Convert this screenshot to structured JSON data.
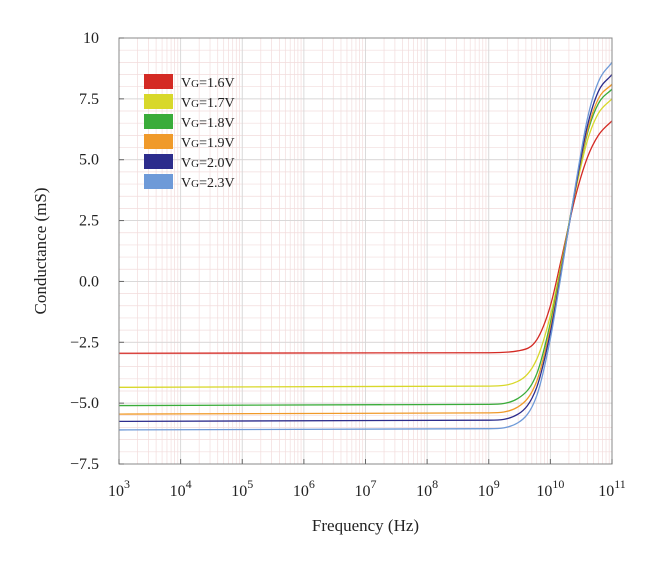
{
  "chart_data": {
    "type": "line",
    "title": "",
    "xlabel": "Frequency (Hz)",
    "ylabel": "Conductance (mS)",
    "x_scale": "log10",
    "xlim": [
      1000,
      100000000000
    ],
    "ylim": [
      -7.5,
      10
    ],
    "x_ticks": [
      {
        "value": 1000,
        "base": "10",
        "exp": "3"
      },
      {
        "value": 10000,
        "base": "10",
        "exp": "4"
      },
      {
        "value": 100000,
        "base": "10",
        "exp": "5"
      },
      {
        "value": 1000000,
        "base": "10",
        "exp": "6"
      },
      {
        "value": 10000000,
        "base": "10",
        "exp": "7"
      },
      {
        "value": 100000000,
        "base": "10",
        "exp": "8"
      },
      {
        "value": 1000000000,
        "base": "10",
        "exp": "9"
      },
      {
        "value": 10000000000,
        "base": "10",
        "exp": "10"
      },
      {
        "value": 100000000000,
        "base": "10",
        "exp": "11"
      }
    ],
    "y_ticks": [
      {
        "value": 10,
        "label": "10"
      },
      {
        "value": 7.5,
        "label": "7.5"
      },
      {
        "value": 5,
        "label": "5.0"
      },
      {
        "value": 2.5,
        "label": "2.5"
      },
      {
        "value": 0,
        "label": "0.0"
      },
      {
        "value": -2.5,
        "label": "−2.5"
      },
      {
        "value": -5,
        "label": "−5.0"
      },
      {
        "value": -7.5,
        "label": "−7.5"
      }
    ],
    "grid": true,
    "legend_position": "top-left",
    "x": [
      1000,
      1000000000,
      3000000000,
      6000000000,
      10000000000,
      15000000000,
      25000000000,
      40000000000,
      60000000000,
      100000000000
    ],
    "series": [
      {
        "name_prefix": "V",
        "name_sub": "G",
        "name_value": "=1.6V",
        "color": "#d42a24",
        "values": [
          -2.95,
          -2.93,
          -2.85,
          -2.4,
          -1.0,
          0.9,
          3.4,
          5.1,
          6.0,
          6.6
        ]
      },
      {
        "name_prefix": "V",
        "name_sub": "G",
        "name_value": "=1.7V",
        "color": "#d8d82a",
        "values": [
          -4.35,
          -4.3,
          -4.1,
          -3.2,
          -1.4,
          0.7,
          3.6,
          5.8,
          6.9,
          7.5
        ]
      },
      {
        "name_prefix": "V",
        "name_sub": "G",
        "name_value": "=1.8V",
        "color": "#3aac3a",
        "values": [
          -5.1,
          -5.05,
          -4.8,
          -3.8,
          -1.7,
          0.6,
          3.7,
          6.1,
          7.3,
          7.9
        ]
      },
      {
        "name_prefix": "V",
        "name_sub": "G",
        "name_value": "=1.9V",
        "color": "#f09a2a",
        "values": [
          -5.45,
          -5.4,
          -5.15,
          -4.1,
          -1.9,
          0.5,
          3.7,
          6.2,
          7.5,
          8.1
        ]
      },
      {
        "name_prefix": "V",
        "name_sub": "G",
        "name_value": "=2.0V",
        "color": "#2c2c8c",
        "values": [
          -5.75,
          -5.7,
          -5.45,
          -4.35,
          -2.1,
          0.4,
          3.7,
          6.4,
          7.8,
          8.5
        ]
      },
      {
        "name_prefix": "V",
        "name_sub": "G",
        "name_value": "=2.3V",
        "color": "#6e9ad8",
        "values": [
          -6.1,
          -6.05,
          -5.8,
          -4.7,
          -2.35,
          0.3,
          3.8,
          6.7,
          8.2,
          9.0
        ]
      }
    ]
  }
}
